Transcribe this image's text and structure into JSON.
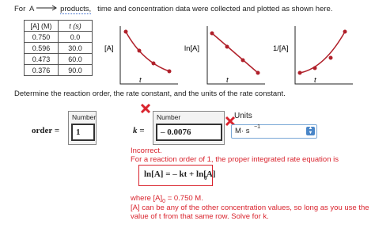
{
  "intro": {
    "prefix": "For",
    "reactant": "A",
    "product": "products,",
    "text": "time and concentration data were collected and plotted as shown here."
  },
  "table": {
    "header": [
      "[A] (M)",
      "t (s)"
    ],
    "rows": [
      [
        "0.750",
        "0.0"
      ],
      [
        "0.596",
        "30.0"
      ],
      [
        "0.473",
        "60.0"
      ],
      [
        "0.376",
        "90.0"
      ]
    ]
  },
  "plots": [
    {
      "ylabel": "[A]",
      "xlabel": "t"
    },
    {
      "ylabel": "ln[A]",
      "xlabel": "t"
    },
    {
      "ylabel": "1/[A]",
      "xlabel": "t"
    }
  ],
  "question": "Determine the reaction order, the rate constant, and the units of the rate constant.",
  "answers": {
    "order_label": "order =",
    "order_box_label": "Number",
    "order_value": "1",
    "k_label": "k =",
    "k_box_label": "Number",
    "k_value": "– 0.0076",
    "units_label": "Units",
    "units_value": "M· s",
    "units_exponent": "−1"
  },
  "feedback": {
    "status": "Incorrect.",
    "line": "For a reaction order of 1, the proper integrated rate equation is",
    "equation": "ln[A] = – kt + ln[A]",
    "equation_subscript": "0",
    "where_prefix": "where [A]",
    "where_subscript": "0",
    "where_suffix": "= 0.750 M.",
    "note_1": "[A] can be any of the other concentration values, so long as you use the",
    "note_2": "value of t from that same row. Solve for k."
  }
}
